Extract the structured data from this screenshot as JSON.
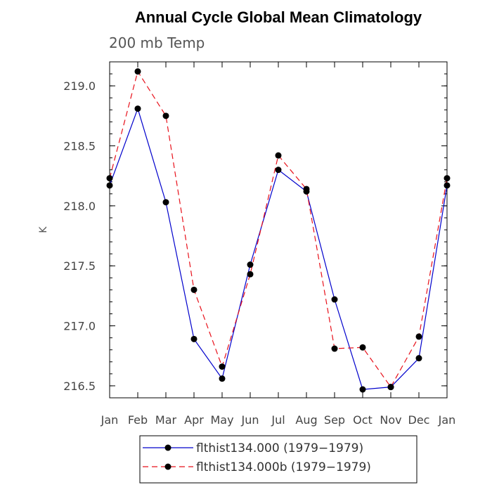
{
  "chart_data": {
    "type": "line",
    "title": "Annual Cycle Global Mean Climatology",
    "subtitle": "200 mb Temp",
    "xlabel": "",
    "ylabel": "K",
    "categories": [
      "Jan",
      "Feb",
      "Mar",
      "Apr",
      "May",
      "Jun",
      "Jul",
      "Aug",
      "Sep",
      "Oct",
      "Nov",
      "Dec",
      "Jan"
    ],
    "ylim": [
      216.4,
      219.2
    ],
    "yticks": [
      216.5,
      217.0,
      217.5,
      218.0,
      218.5,
      219.0
    ],
    "ytick_labels": [
      "216.5",
      "217.0",
      "217.5",
      "218.0",
      "218.5",
      "219.0"
    ],
    "grid": false,
    "legend_position": "bottom",
    "series": [
      {
        "name": "flthist134.000 (1979−1979)",
        "color": "#0000cc",
        "dash": "solid",
        "values": [
          218.17,
          218.81,
          218.03,
          216.89,
          216.56,
          217.51,
          218.3,
          218.12,
          217.22,
          216.47,
          216.49,
          216.73,
          218.17
        ]
      },
      {
        "name": "flthist134.000b (1979−1979)",
        "color": "#e8101a",
        "dash": "dashed",
        "values": [
          218.23,
          219.12,
          218.75,
          217.3,
          216.66,
          217.43,
          218.42,
          218.14,
          216.81,
          216.82,
          216.49,
          216.91,
          218.23
        ]
      }
    ]
  }
}
